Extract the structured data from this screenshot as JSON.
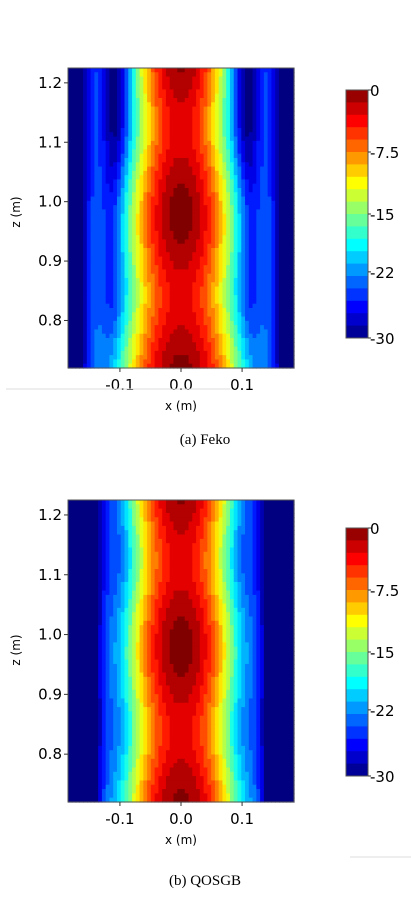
{
  "chart_data": [
    {
      "type": "heatmap",
      "caption": "(a) Feko",
      "xlabel": "x (m)",
      "ylabel": "z (m)",
      "x_ticks": [
        "-0.1",
        "0.0",
        "0.1"
      ],
      "y_ticks": [
        "0.8",
        "0.9",
        "1.0",
        "1.1",
        "1.2"
      ],
      "xlim": [
        -0.185,
        0.185
      ],
      "ylim": [
        0.72,
        1.225
      ],
      "colorbar": {
        "ticks": [
          "0",
          "-7.5",
          "-15",
          "-22",
          "-30"
        ],
        "range": [
          -30,
          0
        ],
        "levels": 20
      },
      "field": {
        "beam_center_x": 0.0,
        "beam_halfwidth_top": 0.055,
        "beam_halfwidth_bottom": 0.07,
        "sidelobe_offset_x": 0.14,
        "sidelobe_level_db": -25
      }
    },
    {
      "type": "heatmap",
      "caption": "(b) QOSGB",
      "xlabel": "x (m)",
      "ylabel": "z (m)",
      "x_ticks": [
        "-0.1",
        "0.0",
        "0.1"
      ],
      "y_ticks": [
        "0.8",
        "0.9",
        "1.0",
        "1.1",
        "1.2"
      ],
      "xlim": [
        -0.185,
        0.185
      ],
      "ylim": [
        0.72,
        1.225
      ],
      "colorbar": {
        "ticks": [
          "0",
          "-7.5",
          "-15",
          "-22",
          "-30"
        ],
        "range": [
          -30,
          0
        ],
        "levels": 20
      },
      "field": {
        "beam_center_x": 0.0,
        "beam_halfwidth_top": 0.06,
        "beam_halfwidth_bottom": 0.065,
        "sidelobe_offset_x": 0.12,
        "sidelobe_level_db": -28
      }
    }
  ]
}
